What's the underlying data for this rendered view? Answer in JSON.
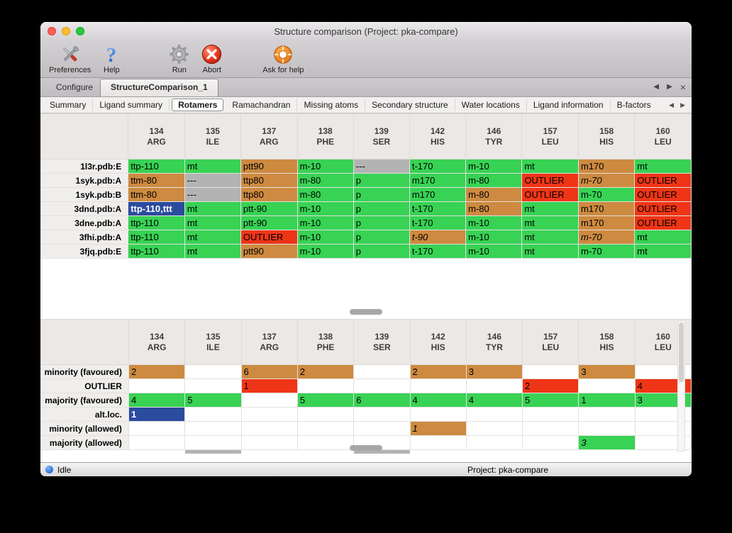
{
  "window": {
    "title": "Structure comparison (Project: pka-compare)"
  },
  "toolbar": {
    "preferences_label": "Preferences",
    "help_label": "Help",
    "run_label": "Run",
    "abort_label": "Abort",
    "ask_label": "Ask for help"
  },
  "icons": {
    "back": "◀",
    "forward": "▶",
    "close": "×"
  },
  "doc_tabs": {
    "items": [
      {
        "label": "Configure",
        "active": false
      },
      {
        "label": "StructureComparison_1",
        "active": true
      }
    ]
  },
  "sub_tabs": {
    "items": [
      "Summary",
      "Ligand summary",
      "Rotamers",
      "Ramachandran",
      "Missing atoms",
      "Secondary structure",
      "Water locations",
      "Ligand information",
      "B-factors"
    ],
    "active": "Rotamers"
  },
  "colors": {
    "green": "#38d254",
    "orange": "#cd8a40",
    "red": "#ef3517",
    "gray": "#b3b3b3",
    "blue": "#2b4b9f"
  },
  "columns": [
    {
      "num": "134",
      "name": "ARG"
    },
    {
      "num": "135",
      "name": "ILE"
    },
    {
      "num": "137",
      "name": "ARG"
    },
    {
      "num": "138",
      "name": "PHE"
    },
    {
      "num": "139",
      "name": "SER"
    },
    {
      "num": "142",
      "name": "HIS"
    },
    {
      "num": "146",
      "name": "TYR"
    },
    {
      "num": "157",
      "name": "LEU"
    },
    {
      "num": "158",
      "name": "HIS"
    },
    {
      "num": "160",
      "name": "LEU"
    }
  ],
  "structures_table": {
    "rows": [
      {
        "label": "1l3r.pdb:E",
        "cells": [
          {
            "text": "ttp-110",
            "color": "green"
          },
          {
            "text": "mt",
            "color": "green"
          },
          {
            "text": "ptt90",
            "color": "orange"
          },
          {
            "text": "m-10",
            "color": "green"
          },
          {
            "text": "---",
            "color": "gray"
          },
          {
            "text": "t-170",
            "color": "green"
          },
          {
            "text": "m-10",
            "color": "green"
          },
          {
            "text": "mt",
            "color": "green"
          },
          {
            "text": "m170",
            "color": "orange"
          },
          {
            "text": "mt",
            "color": "green"
          }
        ]
      },
      {
        "label": "1syk.pdb:A",
        "cells": [
          {
            "text": "ttm-80",
            "color": "orange"
          },
          {
            "text": "---",
            "color": "gray"
          },
          {
            "text": "ttp80",
            "color": "orange"
          },
          {
            "text": "m-80",
            "color": "green"
          },
          {
            "text": "p",
            "color": "green"
          },
          {
            "text": "m170",
            "color": "green"
          },
          {
            "text": "m-80",
            "color": "green"
          },
          {
            "text": "OUTLIER",
            "color": "red"
          },
          {
            "text": "m-70",
            "color": "orange",
            "italic": true
          },
          {
            "text": "OUTLIER",
            "color": "red"
          }
        ]
      },
      {
        "label": "1syk.pdb:B",
        "cells": [
          {
            "text": "ttm-80",
            "color": "orange"
          },
          {
            "text": "---",
            "color": "gray"
          },
          {
            "text": "ttp80",
            "color": "orange"
          },
          {
            "text": "m-80",
            "color": "green"
          },
          {
            "text": "p",
            "color": "green"
          },
          {
            "text": "m170",
            "color": "green"
          },
          {
            "text": "m-80",
            "color": "orange"
          },
          {
            "text": "OUTLIER",
            "color": "red"
          },
          {
            "text": "m-70",
            "color": "green"
          },
          {
            "text": "OUTLIER",
            "color": "red"
          }
        ]
      },
      {
        "label": "3dnd.pdb:A",
        "cells": [
          {
            "text": "ttp-110,ttt",
            "color": "blue"
          },
          {
            "text": "mt",
            "color": "green"
          },
          {
            "text": "ptt-90",
            "color": "green"
          },
          {
            "text": "m-10",
            "color": "green"
          },
          {
            "text": "p",
            "color": "green"
          },
          {
            "text": "t-170",
            "color": "green"
          },
          {
            "text": "m-80",
            "color": "orange"
          },
          {
            "text": "mt",
            "color": "green"
          },
          {
            "text": "m170",
            "color": "orange"
          },
          {
            "text": "OUTLIER",
            "color": "red"
          }
        ]
      },
      {
        "label": "3dne.pdb:A",
        "cells": [
          {
            "text": "ttp-110",
            "color": "green"
          },
          {
            "text": "mt",
            "color": "green"
          },
          {
            "text": "ptt-90",
            "color": "green"
          },
          {
            "text": "m-10",
            "color": "green"
          },
          {
            "text": "p",
            "color": "green"
          },
          {
            "text": "t-170",
            "color": "green"
          },
          {
            "text": "m-10",
            "color": "green"
          },
          {
            "text": "mt",
            "color": "green"
          },
          {
            "text": "m170",
            "color": "orange"
          },
          {
            "text": "OUTLIER",
            "color": "red"
          }
        ]
      },
      {
        "label": "3fhi.pdb:A",
        "cells": [
          {
            "text": "ttp-110",
            "color": "green"
          },
          {
            "text": "mt",
            "color": "green"
          },
          {
            "text": "OUTLIER",
            "color": "red"
          },
          {
            "text": "m-10",
            "color": "green"
          },
          {
            "text": "p",
            "color": "green"
          },
          {
            "text": "t-90",
            "color": "orange",
            "italic": true
          },
          {
            "text": "m-10",
            "color": "green"
          },
          {
            "text": "mt",
            "color": "green"
          },
          {
            "text": "m-70",
            "color": "orange",
            "italic": true
          },
          {
            "text": "mt",
            "color": "green"
          }
        ]
      },
      {
        "label": "3fjq.pdb:E",
        "cells": [
          {
            "text": "ttp-110",
            "color": "green"
          },
          {
            "text": "mt",
            "color": "green"
          },
          {
            "text": "ptt90",
            "color": "orange"
          },
          {
            "text": "m-10",
            "color": "green"
          },
          {
            "text": "p",
            "color": "green"
          },
          {
            "text": "t-170",
            "color": "green"
          },
          {
            "text": "m-10",
            "color": "green"
          },
          {
            "text": "mt",
            "color": "green"
          },
          {
            "text": "m-70",
            "color": "green"
          },
          {
            "text": "mt",
            "color": "green"
          }
        ]
      }
    ]
  },
  "summary_table": {
    "rows": [
      {
        "label": "minority (favoured)",
        "cells": [
          {
            "text": "2",
            "color": "orange"
          },
          null,
          {
            "text": "6",
            "color": "orange"
          },
          {
            "text": "2",
            "color": "orange"
          },
          null,
          {
            "text": "2",
            "color": "orange"
          },
          {
            "text": "3",
            "color": "orange"
          },
          null,
          {
            "text": "3",
            "color": "orange"
          },
          null
        ]
      },
      {
        "label": "OUTLIER",
        "cells": [
          null,
          null,
          {
            "text": "1",
            "color": "red"
          },
          null,
          null,
          null,
          null,
          {
            "text": "2",
            "color": "red"
          },
          null,
          {
            "text": "4",
            "color": "red"
          }
        ]
      },
      {
        "label": "majority (favoured)",
        "cells": [
          {
            "text": "4",
            "color": "green"
          },
          {
            "text": "5",
            "color": "green"
          },
          null,
          {
            "text": "5",
            "color": "green"
          },
          {
            "text": "6",
            "color": "green"
          },
          {
            "text": "4",
            "color": "green"
          },
          {
            "text": "4",
            "color": "green"
          },
          {
            "text": "5",
            "color": "green"
          },
          {
            "text": "1",
            "color": "green"
          },
          {
            "text": "3",
            "color": "green"
          }
        ]
      },
      {
        "label": "alt.loc.",
        "cells": [
          {
            "text": "1",
            "color": "blue"
          },
          null,
          null,
          null,
          null,
          null,
          null,
          null,
          null,
          null
        ]
      },
      {
        "label": "minority (allowed)",
        "cells": [
          null,
          null,
          null,
          null,
          null,
          {
            "text": "1",
            "color": "orange",
            "italic": true
          },
          null,
          null,
          null,
          null
        ]
      },
      {
        "label": "majority (allowed)",
        "cells": [
          null,
          null,
          null,
          null,
          null,
          null,
          null,
          null,
          {
            "text": "3",
            "color": "green",
            "italic": true
          },
          null
        ]
      }
    ],
    "partial_gray_columns": [
      1,
      4
    ]
  },
  "status_bar": {
    "state": "Idle",
    "project": "Project: pka-compare"
  }
}
